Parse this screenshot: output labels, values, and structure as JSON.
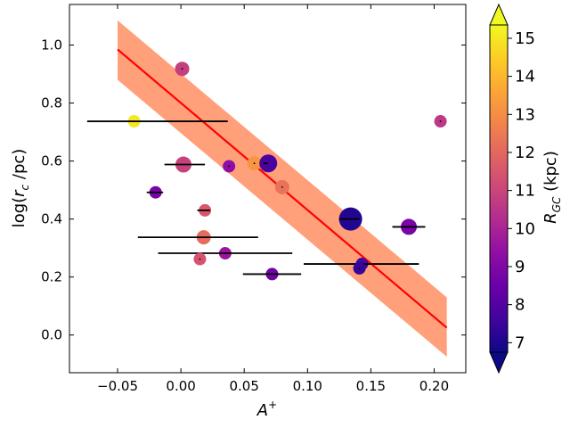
{
  "chart_data": {
    "type": "scatter",
    "title": "",
    "xlabel": "A",
    "xlabel_sup": "+",
    "ylabel_main": "log(",
    "ylabel_r": "r",
    "ylabel_sub": "c",
    "ylabel_tail": " /pc)",
    "xlim": [
      -0.088,
      0.225
    ],
    "ylim": [
      -0.13,
      1.14
    ],
    "xticks": [
      -0.05,
      0.0,
      0.05,
      0.1,
      0.15,
      0.2
    ],
    "xtick_labels": [
      "−0.05",
      "0.00",
      "0.05",
      "0.10",
      "0.15",
      "0.20"
    ],
    "yticks": [
      0.0,
      0.2,
      0.4,
      0.6,
      0.8,
      1.0
    ],
    "ytick_labels": [
      "0.0",
      "0.2",
      "0.4",
      "0.6",
      "0.8",
      "1.0"
    ],
    "fit_line": {
      "x": [
        -0.05,
        0.21
      ],
      "y": [
        0.985,
        0.025
      ],
      "color": "#ff0000"
    },
    "fit_band": {
      "x": [
        -0.05,
        0.21
      ],
      "upper": [
        1.085,
        0.13
      ],
      "lower": [
        0.88,
        -0.075
      ],
      "color": "#ffa07a"
    },
    "colorbar": {
      "label_main": "R",
      "label_sub": "GC",
      "label_tail": " (kpc)",
      "min": 6.75,
      "max": 15.35,
      "ticks": [
        7,
        8,
        9,
        10,
        11,
        12,
        13,
        14,
        15
      ],
      "tick_labels": [
        "7",
        "8",
        "9",
        "10",
        "11",
        "12",
        "13",
        "14",
        "15"
      ],
      "extend": "both",
      "colormap": "plasma"
    },
    "points": [
      {
        "x": 0.001,
        "y": 0.918,
        "rgc": 10.8,
        "size": 8,
        "err_lo": 0,
        "err_hi": 0
      },
      {
        "x": -0.037,
        "y": 0.737,
        "rgc": 15.0,
        "size": 7,
        "err_lo": 0.037,
        "err_hi": 0.074
      },
      {
        "x": 0.002,
        "y": 0.588,
        "rgc": 10.9,
        "size": 9,
        "err_lo": 0.015,
        "err_hi": 0.017
      },
      {
        "x": 0.038,
        "y": 0.582,
        "rgc": 9.3,
        "size": 7,
        "err_lo": 0,
        "err_hi": 0
      },
      {
        "x": 0.058,
        "y": 0.592,
        "rgc": 13.2,
        "size": 8,
        "err_lo": 0,
        "err_hi": 0
      },
      {
        "x": 0.069,
        "y": 0.592,
        "rgc": 7.8,
        "size": 10,
        "err_lo": 0.004,
        "err_hi": 0
      },
      {
        "x": 0.08,
        "y": 0.51,
        "rgc": 12.3,
        "size": 8,
        "err_lo": 0,
        "err_hi": 0
      },
      {
        "x": -0.02,
        "y": 0.492,
        "rgc": 8.8,
        "size": 7,
        "err_lo": 0.007,
        "err_hi": 0.006
      },
      {
        "x": 0.019,
        "y": 0.43,
        "rgc": 11.5,
        "size": 7,
        "err_lo": 0.006,
        "err_hi": 0.004
      },
      {
        "x": 0.134,
        "y": 0.4,
        "rgc": 7.1,
        "size": 13,
        "err_lo": 0.009,
        "err_hi": 0.007
      },
      {
        "x": 0.18,
        "y": 0.373,
        "rgc": 8.8,
        "size": 9,
        "err_lo": 0.013,
        "err_hi": 0.013
      },
      {
        "x": 0.018,
        "y": 0.337,
        "rgc": 12.1,
        "size": 8,
        "err_lo": 0.052,
        "err_hi": 0.043
      },
      {
        "x": 0.035,
        "y": 0.282,
        "rgc": 9.6,
        "size": 7,
        "err_lo": 0.053,
        "err_hi": 0.053
      },
      {
        "x": 0.015,
        "y": 0.262,
        "rgc": 11.4,
        "size": 7,
        "err_lo": 0,
        "err_hi": 0
      },
      {
        "x": 0.143,
        "y": 0.245,
        "rgc": 7.8,
        "size": 7,
        "err_lo": 0.046,
        "err_hi": 0.045
      },
      {
        "x": 0.141,
        "y": 0.23,
        "rgc": 7.4,
        "size": 7,
        "err_lo": 0,
        "err_hi": 0
      },
      {
        "x": 0.072,
        "y": 0.21,
        "rgc": 8.6,
        "size": 7,
        "err_lo": 0.023,
        "err_hi": 0.023
      },
      {
        "x": 0.205,
        "y": 0.737,
        "rgc": 10.6,
        "size": 7,
        "err_lo": 0,
        "err_hi": 0
      }
    ]
  }
}
